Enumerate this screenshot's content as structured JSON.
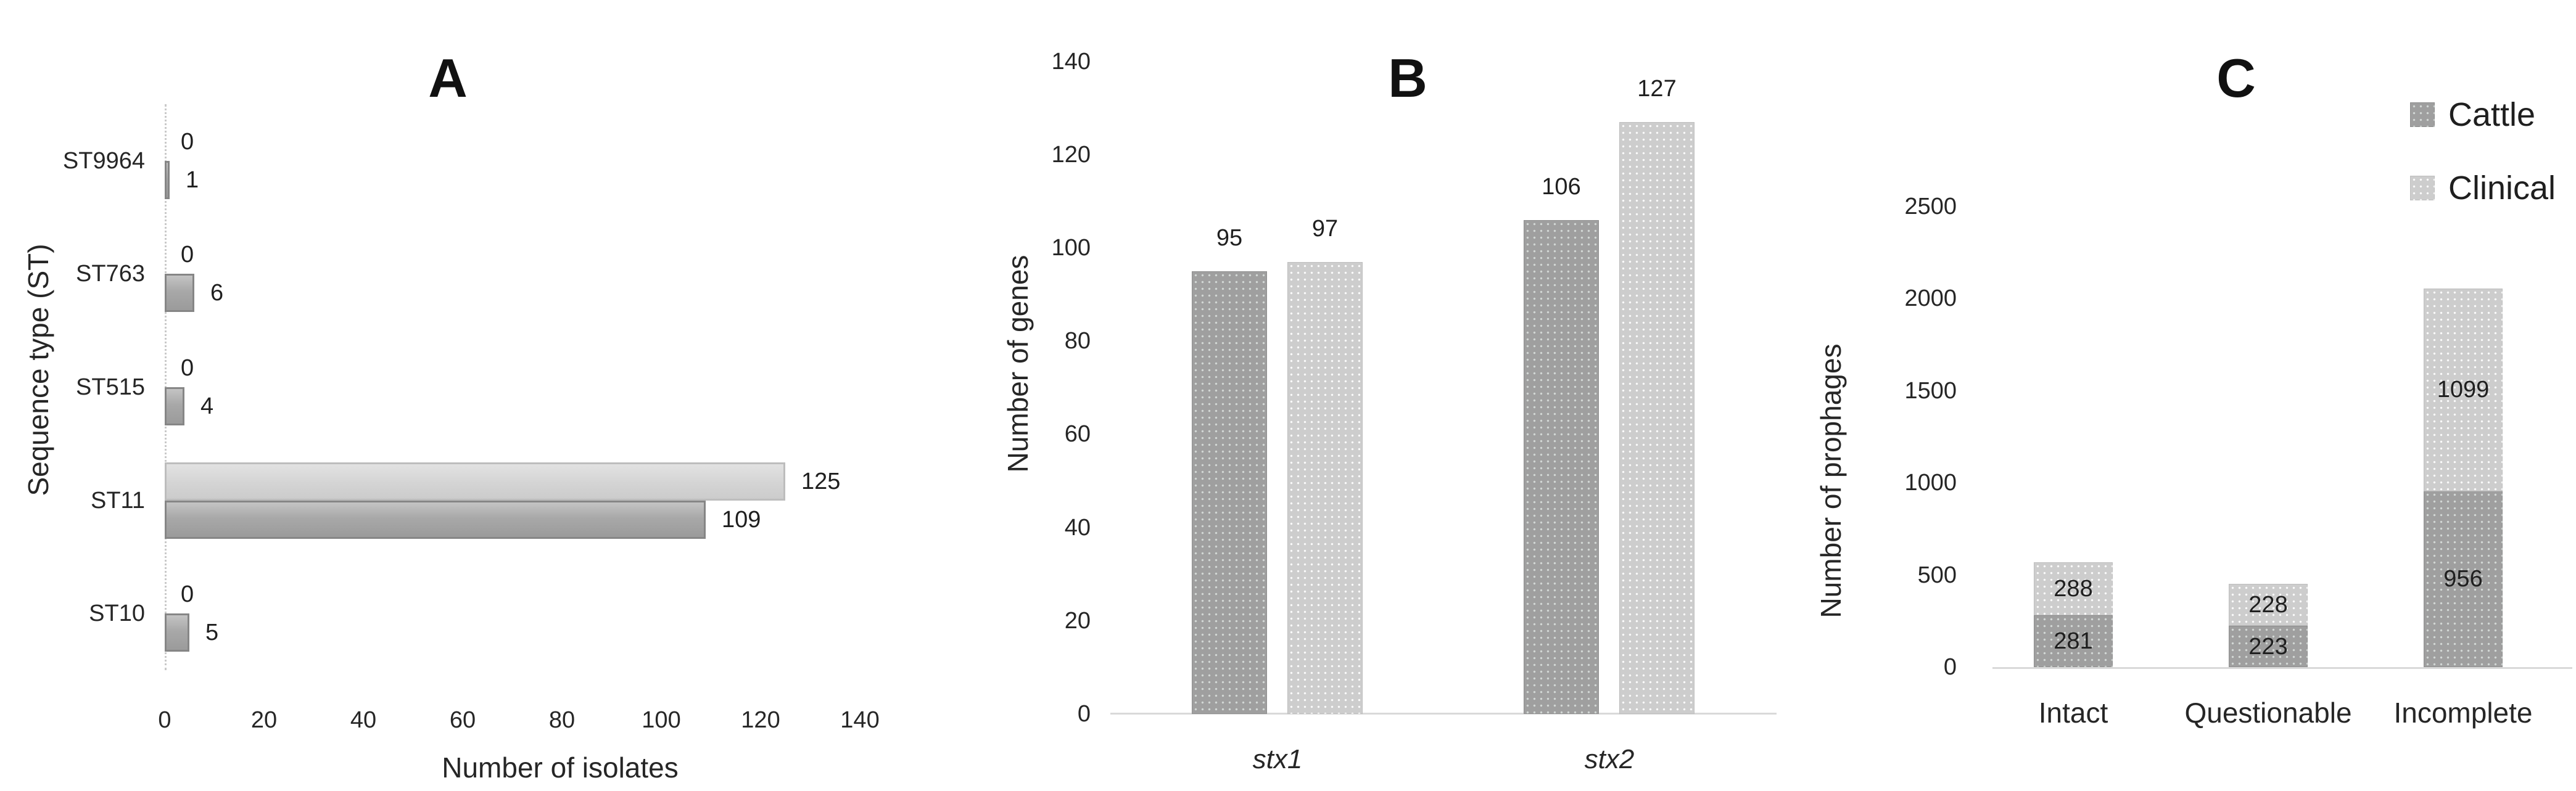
{
  "figure": {
    "background": "#ffffff"
  },
  "colors": {
    "cattle": "#9f9f9f",
    "clinical": "#cdcdcd",
    "axis_line": "#d9d9d9",
    "text": "#1a1a1a"
  },
  "chart_data": [
    {
      "id": "A",
      "type": "bar",
      "orientation": "horizontal",
      "title": "A",
      "xlabel": "Number of isolates",
      "ylabel": "Sequence type (ST)",
      "categories": [
        "ST9964",
        "ST763",
        "ST515",
        "ST11",
        "ST10"
      ],
      "series": [
        {
          "name": "Clinical",
          "values": [
            0,
            0,
            0,
            125,
            0
          ]
        },
        {
          "name": "Cattle",
          "values": [
            1,
            6,
            4,
            109,
            5
          ]
        }
      ],
      "xlim": [
        0,
        140
      ],
      "xticks": [
        0,
        20,
        40,
        60,
        80,
        100,
        120,
        140
      ],
      "grid": false,
      "legend_position": "none"
    },
    {
      "id": "B",
      "type": "bar",
      "orientation": "vertical",
      "title": "B",
      "xlabel": "",
      "ylabel": "Number of genes",
      "categories": [
        "stx1",
        "stx2"
      ],
      "series": [
        {
          "name": "Cattle",
          "values": [
            95,
            106
          ]
        },
        {
          "name": "Clinical",
          "values": [
            97,
            127
          ]
        }
      ],
      "ylim": [
        0,
        140
      ],
      "yticks": [
        0,
        20,
        40,
        60,
        80,
        100,
        120,
        140
      ],
      "grid": false,
      "legend_position": "none"
    },
    {
      "id": "C",
      "type": "stacked-bar",
      "orientation": "vertical",
      "title": "C",
      "xlabel": "",
      "ylabel": "Number of prophages",
      "categories": [
        "Intact",
        "Questionable",
        "Incomplete"
      ],
      "series": [
        {
          "name": "Cattle",
          "values": [
            281,
            223,
            956
          ]
        },
        {
          "name": "Clinical",
          "values": [
            288,
            228,
            1099
          ]
        }
      ],
      "ylim": [
        0,
        2500
      ],
      "yticks": [
        0,
        500,
        1000,
        1500,
        2000,
        2500
      ],
      "grid": false,
      "legend_position": "top-right",
      "legend_entries": [
        "Cattle",
        "Clinical"
      ]
    }
  ]
}
